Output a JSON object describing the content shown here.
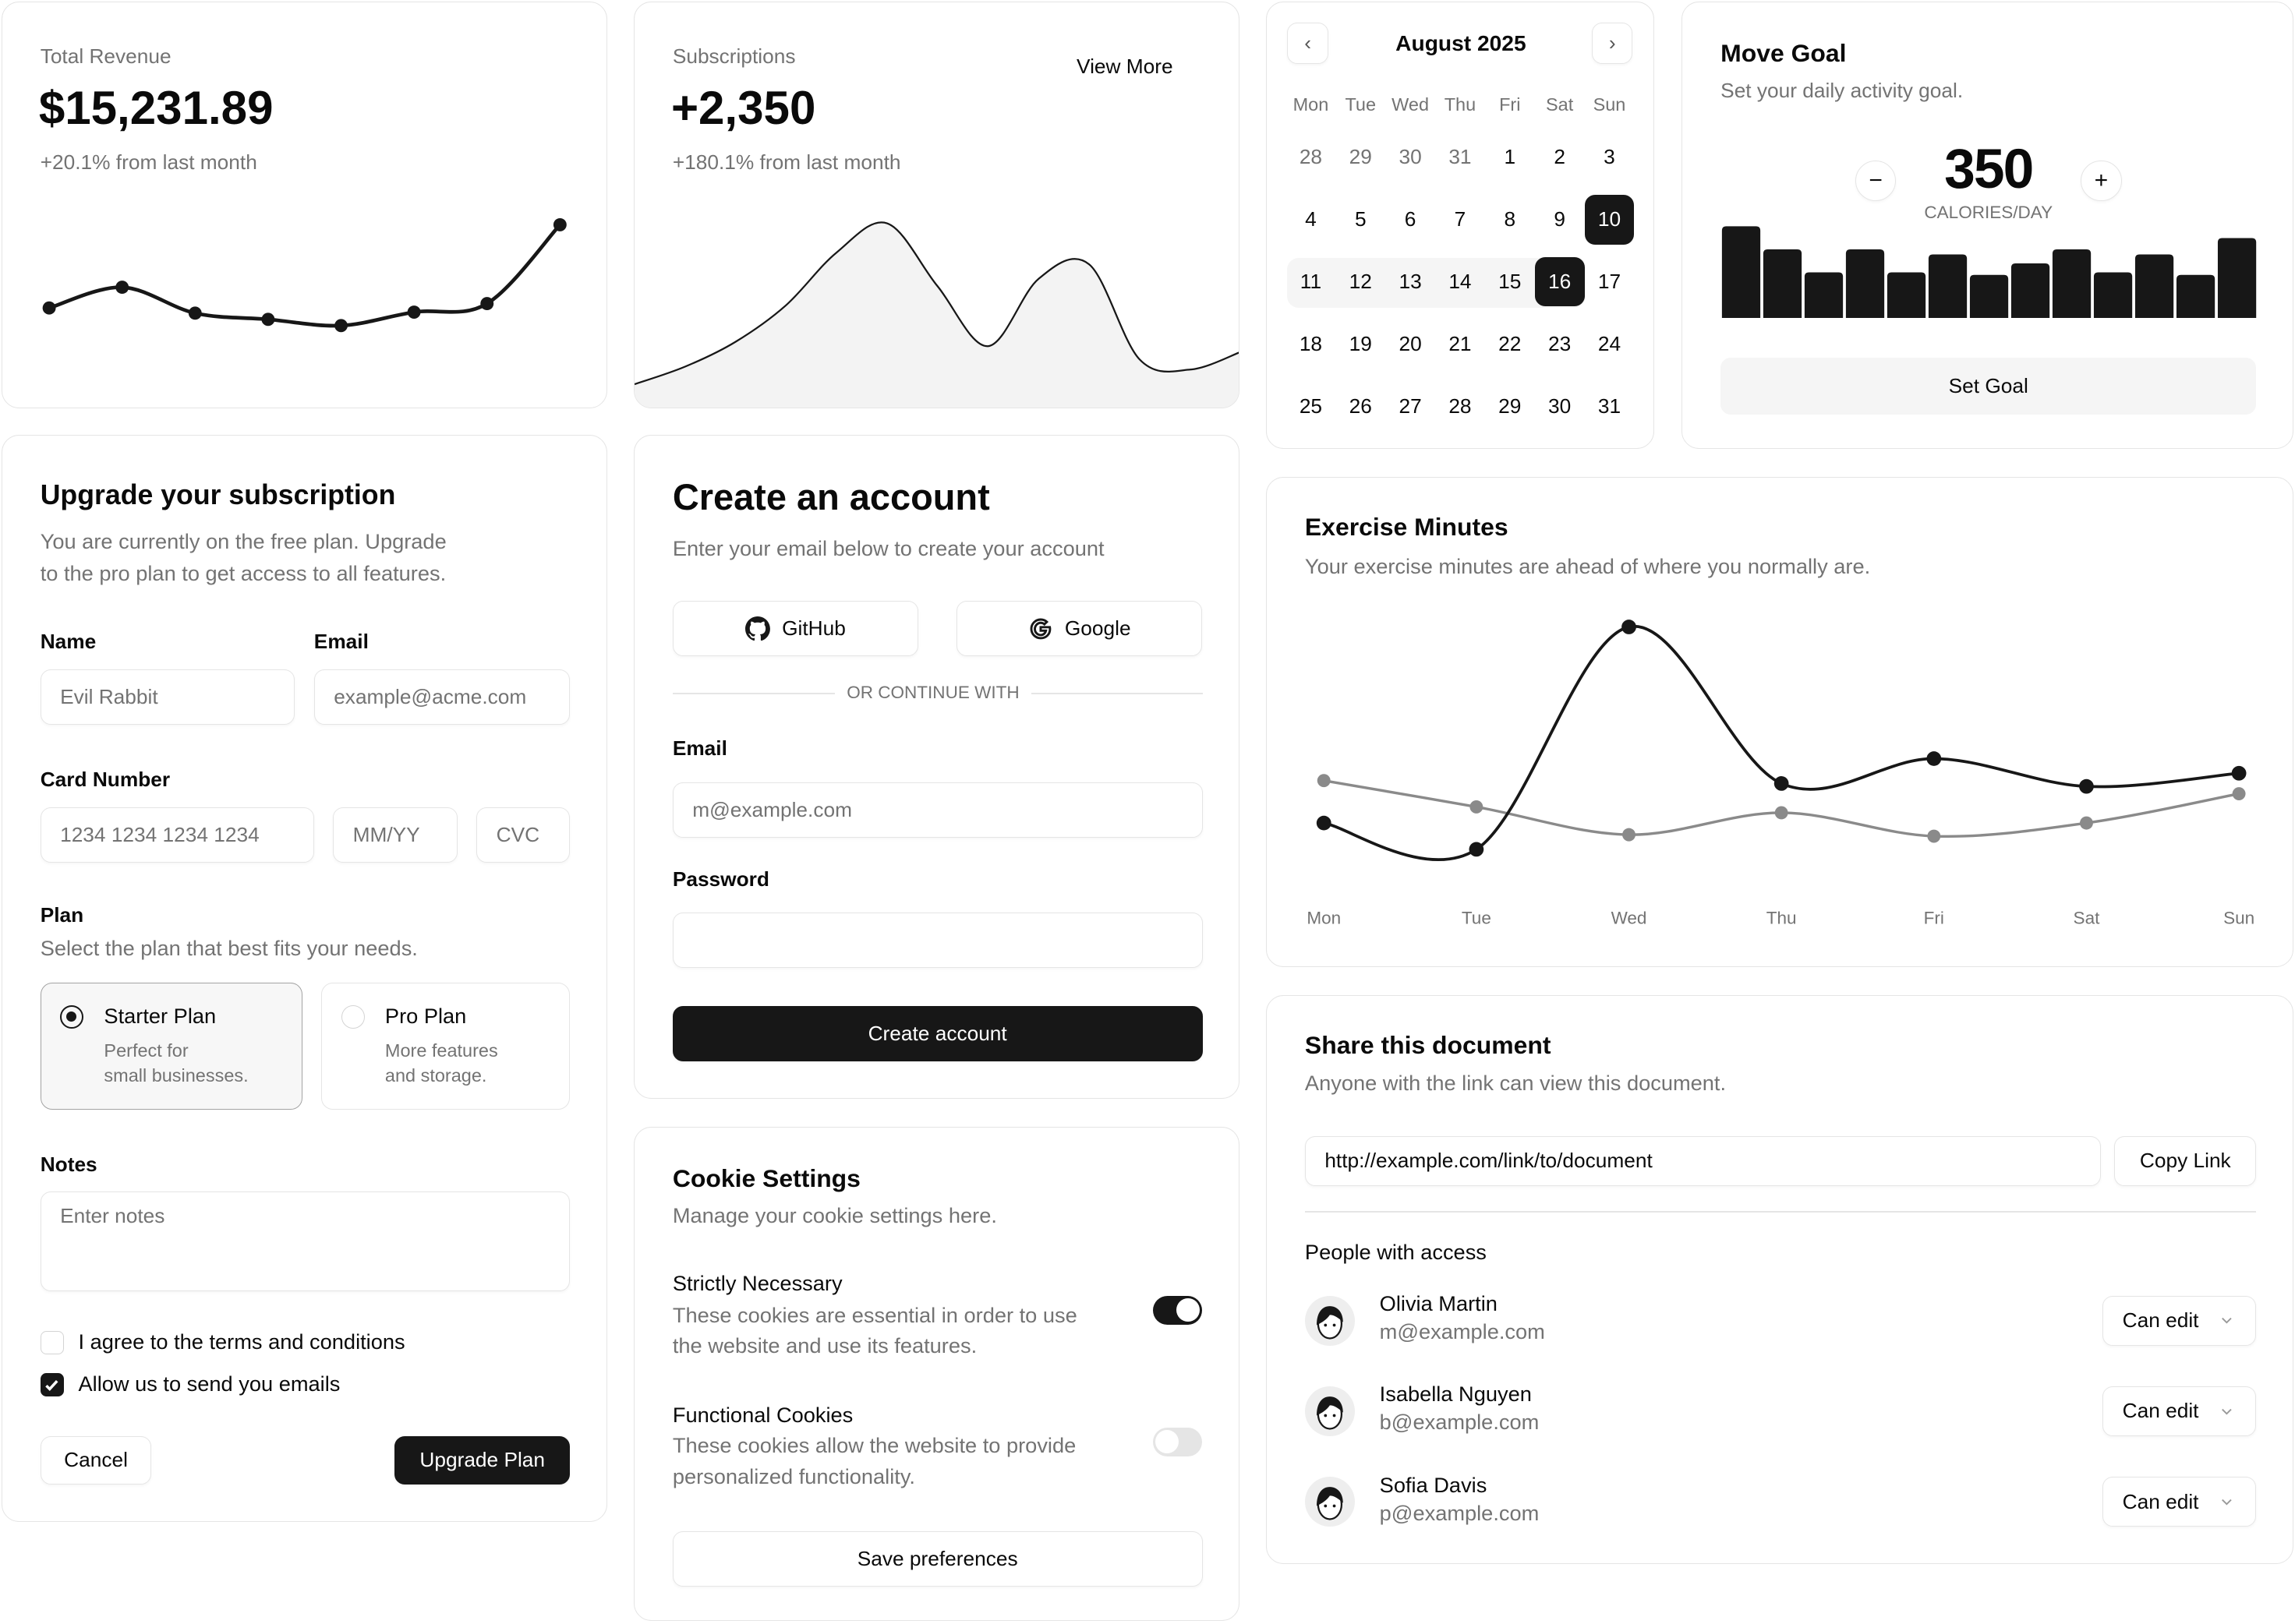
{
  "revenue": {
    "label": "Total Revenue",
    "value": "$15,231.89",
    "change": "+20.1% from last month"
  },
  "subscriptions": {
    "label": "Subscriptions",
    "value": "+2,350",
    "change": "+180.1% from last month",
    "view_more": "View More"
  },
  "calendar": {
    "title": "August 2025",
    "weekdays": [
      "Mon",
      "Tue",
      "Wed",
      "Thu",
      "Fri",
      "Sat",
      "Sun"
    ],
    "days": [
      [
        "28",
        "29",
        "30",
        "31",
        "1",
        "2",
        "3"
      ],
      [
        "4",
        "5",
        "6",
        "7",
        "8",
        "9",
        "10"
      ],
      [
        "11",
        "12",
        "13",
        "14",
        "15",
        "16",
        "17"
      ],
      [
        "18",
        "19",
        "20",
        "21",
        "22",
        "23",
        "24"
      ],
      [
        "25",
        "26",
        "27",
        "28",
        "29",
        "30",
        "31"
      ]
    ],
    "outside_days": [
      "28",
      "29",
      "30",
      "31"
    ],
    "selected": "10",
    "range_start": "11",
    "range_end": "16"
  },
  "move_goal": {
    "title": "Move Goal",
    "description": "Set your daily activity goal.",
    "value": "350",
    "unit": "CALORIES/DAY",
    "button": "Set Goal",
    "bars": [
      400,
      300,
      200,
      300,
      200,
      278,
      189,
      239,
      300,
      200,
      278,
      189,
      349
    ]
  },
  "upgrade": {
    "title": "Upgrade your subscription",
    "description_1": "You are currently on the free plan. Upgrade",
    "description_2": "to the pro plan to get access to all features.",
    "name_label": "Name",
    "name_placeholder": "Evil Rabbit",
    "email_label": "Email",
    "email_placeholder": "example@acme.com",
    "card_label": "Card Number",
    "card_placeholder": "1234 1234 1234 1234",
    "expiry_placeholder": "MM/YY",
    "cvc_placeholder": "CVC",
    "plan_label": "Plan",
    "plan_description": "Select the plan that best fits your needs.",
    "plans": [
      {
        "name": "Starter Plan",
        "desc_1": "Perfect for",
        "desc_2": "small businesses.",
        "selected": true
      },
      {
        "name": "Pro Plan",
        "desc_1": "More features",
        "desc_2": "and storage.",
        "selected": false
      }
    ],
    "notes_label": "Notes",
    "notes_placeholder": "Enter notes",
    "terms": {
      "label": "I agree to the terms and conditions",
      "checked": false
    },
    "emails": {
      "label": "Allow us to send you emails",
      "checked": true
    },
    "cancel": "Cancel",
    "submit": "Upgrade Plan"
  },
  "create_account": {
    "title": "Create an account",
    "description": "Enter your email below to create your account",
    "github": "GitHub",
    "google": "Google",
    "divider": "OR CONTINUE WITH",
    "email_label": "Email",
    "email_placeholder": "m@example.com",
    "password_label": "Password",
    "submit": "Create account"
  },
  "cookies": {
    "title": "Cookie Settings",
    "description": "Manage your cookie settings here.",
    "items": [
      {
        "title": "Strictly Necessary",
        "desc_1": "These cookies are essential in order to use",
        "desc_2": "the website and use its features.",
        "enabled": true
      },
      {
        "title": "Functional Cookies",
        "desc_1": "These cookies allow the website to provide",
        "desc_2": "personalized functionality.",
        "enabled": false
      }
    ],
    "save": "Save preferences"
  },
  "exercise": {
    "title": "Exercise Minutes",
    "description": "Your exercise minutes are ahead of where you normally are."
  },
  "share": {
    "title": "Share this document",
    "description": "Anyone with the link can view this document.",
    "link": "http://example.com/link/to/document",
    "copy": "Copy Link",
    "people_label": "People with access",
    "people": [
      {
        "name": "Olivia Martin",
        "email": "m@example.com",
        "role": "Can edit"
      },
      {
        "name": "Isabella Nguyen",
        "email": "b@example.com",
        "role": "Can edit"
      },
      {
        "name": "Sofia Davis",
        "email": "p@example.com",
        "role": "Can edit"
      }
    ]
  },
  "colors": {
    "primary": "#171717",
    "muted": "#737373",
    "border": "#e5e5e5",
    "secondary_series": "#8a8a8a",
    "area_fill": "#f3f3f3"
  },
  "chart_data": [
    {
      "type": "line",
      "values": [
        10400,
        14405,
        9400,
        8200,
        7000,
        9600,
        11244,
        26475
      ]
    },
    {
      "type": "area",
      "values": [
        18,
        30,
        47,
        72,
        108,
        128,
        85,
        44,
        90,
        100,
        35,
        28,
        40
      ]
    },
    {
      "type": "bar",
      "values": [
        400,
        300,
        200,
        300,
        200,
        278,
        189,
        239,
        300,
        200,
        278,
        189,
        349
      ]
    },
    {
      "type": "line",
      "categories": [
        "Mon",
        "Tue",
        "Wed",
        "Thu",
        "Fri",
        "Sat",
        "Sun"
      ],
      "series": [
        {
          "values": [
            78,
            60,
            212,
            105,
            122,
            103,
            112
          ]
        },
        {
          "values": [
            107,
            89,
            70,
            85,
            69,
            78,
            98
          ]
        }
      ]
    }
  ]
}
